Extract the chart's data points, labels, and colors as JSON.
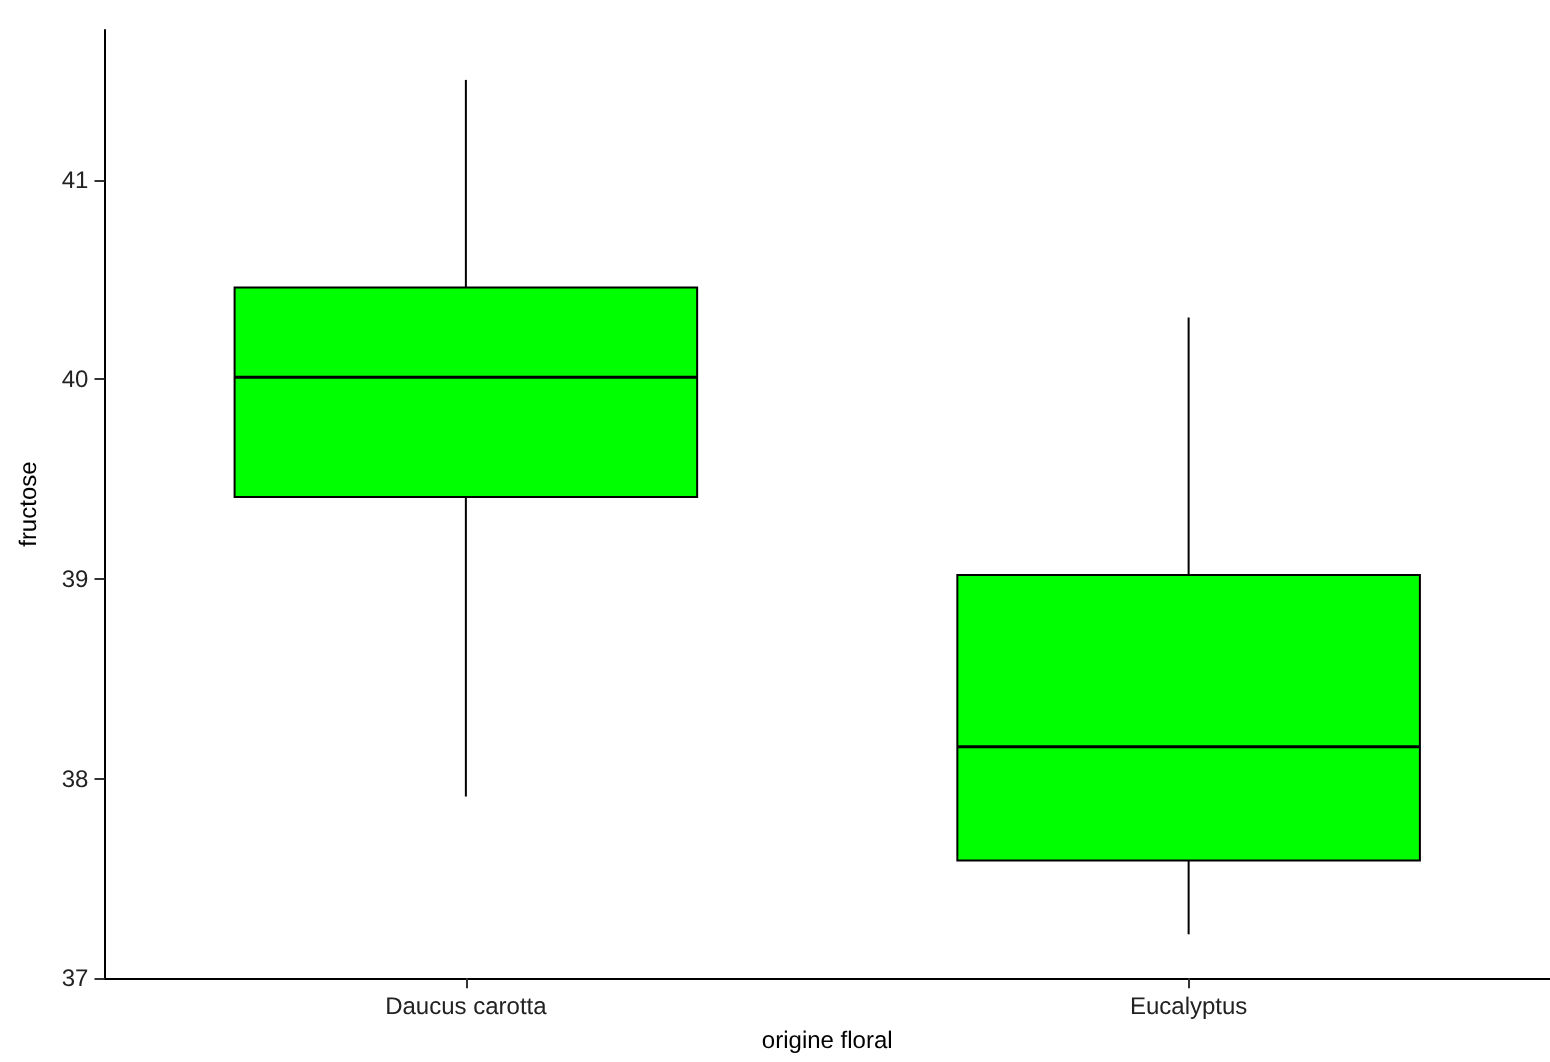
{
  "chart_data": {
    "type": "box",
    "xlabel": "origine floral",
    "ylabel": "fructose",
    "categories": [
      "Daucus carotta",
      "Eucalyptus"
    ],
    "color": "#00ff00",
    "boxes": [
      {
        "low": 37.91,
        "q1": 39.41,
        "median": 40.01,
        "q3": 40.46,
        "high": 41.5
      },
      {
        "low": 37.22,
        "q1": 37.59,
        "median": 38.16,
        "q3": 39.02,
        "high": 40.31
      }
    ],
    "ylim": [
      37,
      41.75
    ],
    "yticks": [
      37,
      38,
      39,
      40,
      41
    ],
    "grid": false
  }
}
